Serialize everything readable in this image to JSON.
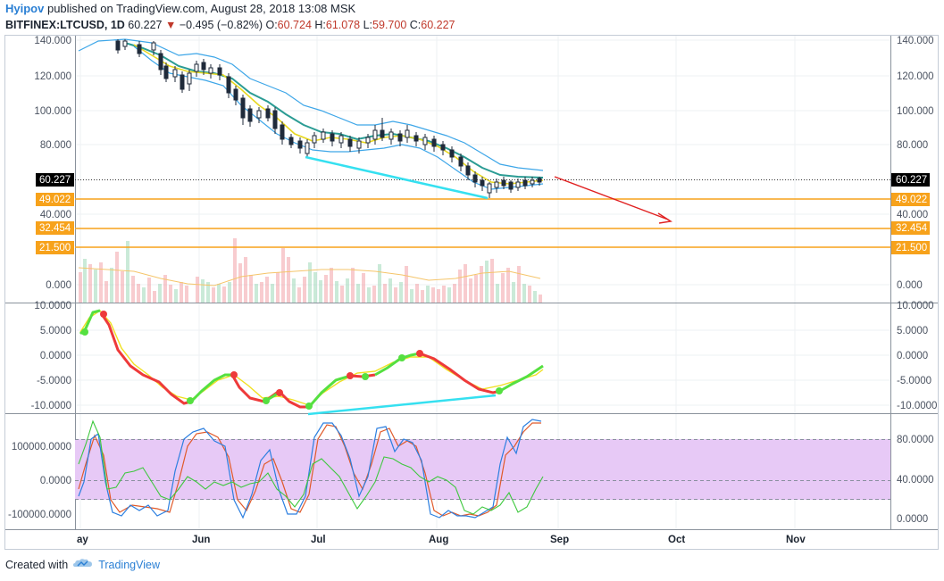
{
  "header": {
    "author": "Hyipov",
    "published": "published on TradingView.com, August 28, 2018 13:08 MSK",
    "symbol": "BITFINEX:LTCUSD, 1D",
    "last": "60.227",
    "change_arrow": "▼",
    "change": "−0.495 (−0.82%)",
    "o_label": "O:",
    "o_value": "60.724",
    "h_label": "H:",
    "h_value": "61.078",
    "l_label": "L:",
    "l_value": "59.700",
    "c_label": "C:",
    "c_value": "60.227"
  },
  "footer": {
    "created_with": "Created with",
    "brand": "TradingView",
    "logo_icon": "tradingview-cloud-icon"
  },
  "colors": {
    "up_candle": "#1f2a3a",
    "down_candle": "#1f2a3a",
    "level_line": "#f7a21b",
    "price_tag_bg": "#000000",
    "level_tag_bg": "#f7a21b",
    "trend_line": "#35e0f0",
    "target_arrow": "#e02020",
    "wave_up": "#55e040",
    "wave_down": "#ee3a3a",
    "wave_signal": "#f0e020",
    "rsi_band": "#e7c9f6",
    "stoch_k": "#2c7fe0",
    "stoch_d": "#e05a2a",
    "stoch_rsi": "#3ec83e"
  },
  "price_pane": {
    "left_axis": [
      "140.000",
      "120.000",
      "100.000",
      "80.000",
      "40.000",
      "0.000"
    ],
    "right_axis": [
      "140.000",
      "120.000",
      "100.000",
      "80.000",
      "40.000",
      "0.000"
    ],
    "current_price_tag": "60.227",
    "levels": [
      "49.022",
      "32.454",
      "21.500"
    ]
  },
  "osc_pane": {
    "left_axis": [
      "10.0000",
      "5.0000",
      "0.0000",
      "-5.0000",
      "-10.0000"
    ],
    "right_axis": [
      "10.0000",
      "5.0000",
      "0.0000",
      "-5.0000",
      "-10.0000"
    ]
  },
  "stoch_pane": {
    "left_axis": [
      "100000.0000",
      "0.0000",
      "-100000.0000"
    ],
    "right_axis": [
      "80.0000",
      "40.0000",
      "0.0000"
    ]
  },
  "time_axis": [
    "ay",
    "Jun",
    "Jul",
    "Aug",
    "Sep",
    "Oct",
    "Nov"
  ]
}
